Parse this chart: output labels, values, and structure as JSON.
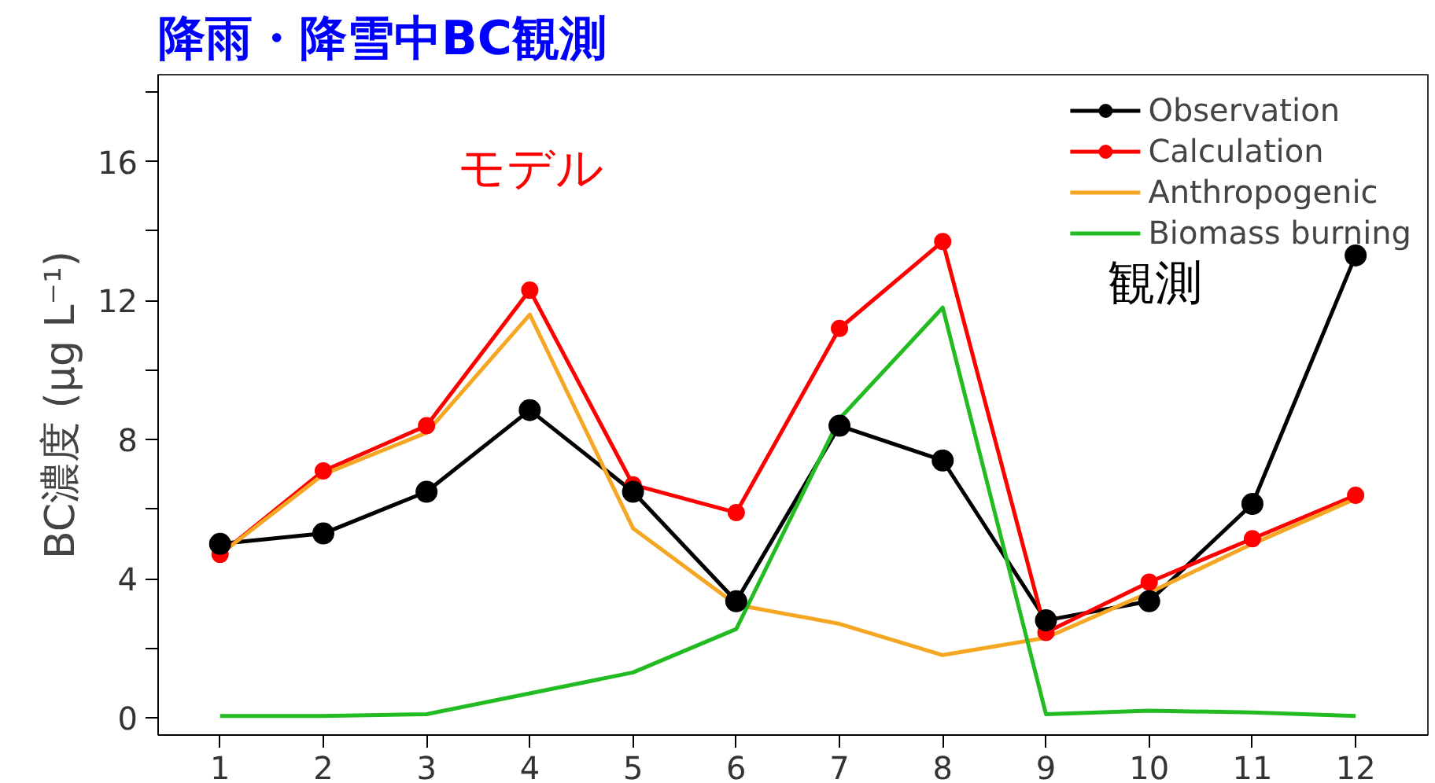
{
  "chart_data": {
    "type": "line",
    "title": "降雨・降雪中BC観測",
    "ylabel": "BC濃度 (μg L⁻¹)",
    "annotations": [
      "モデル",
      "観測"
    ],
    "x": [
      1,
      2,
      3,
      4,
      5,
      6,
      7,
      8,
      9,
      10,
      11,
      12
    ],
    "series": [
      {
        "name": "Observation",
        "color": "#000000",
        "marker": "circle",
        "values": [
          5.0,
          5.3,
          6.5,
          8.85,
          6.5,
          3.35,
          8.4,
          7.4,
          2.8,
          3.35,
          6.15,
          13.3
        ]
      },
      {
        "name": "Calculation",
        "color": "#ff0000",
        "marker": "circle",
        "values": [
          4.7,
          7.1,
          8.4,
          12.3,
          6.7,
          5.9,
          11.2,
          13.7,
          2.45,
          3.9,
          5.15,
          6.4
        ]
      },
      {
        "name": "Anthropogenic",
        "color": "#f5a623",
        "marker": "none",
        "values": [
          4.7,
          7.0,
          8.2,
          11.6,
          5.45,
          3.25,
          2.7,
          1.8,
          2.3,
          3.6,
          5.0,
          6.3
        ]
      },
      {
        "name": "Biomass burning",
        "color": "#22bb22",
        "marker": "none",
        "values": [
          0.05,
          0.05,
          0.1,
          0.7,
          1.3,
          2.55,
          8.6,
          11.8,
          0.1,
          0.2,
          0.15,
          0.05
        ]
      }
    ],
    "xlim": [
      0.4,
      12.7
    ],
    "xticks": [
      1,
      2,
      3,
      4,
      5,
      6,
      7,
      8,
      9,
      10,
      11,
      12
    ],
    "ylim": [
      -0.5,
      18.5
    ],
    "yticks": [
      0,
      {
        "value": 2,
        "label": null
      },
      4,
      {
        "value": 6,
        "label": null
      },
      8,
      {
        "value": 10,
        "label": null
      },
      12,
      {
        "value": 14,
        "label": null
      },
      16,
      {
        "value": 18,
        "label": null
      }
    ],
    "legend": "top right",
    "grid": false,
    "line_style": "solid"
  }
}
